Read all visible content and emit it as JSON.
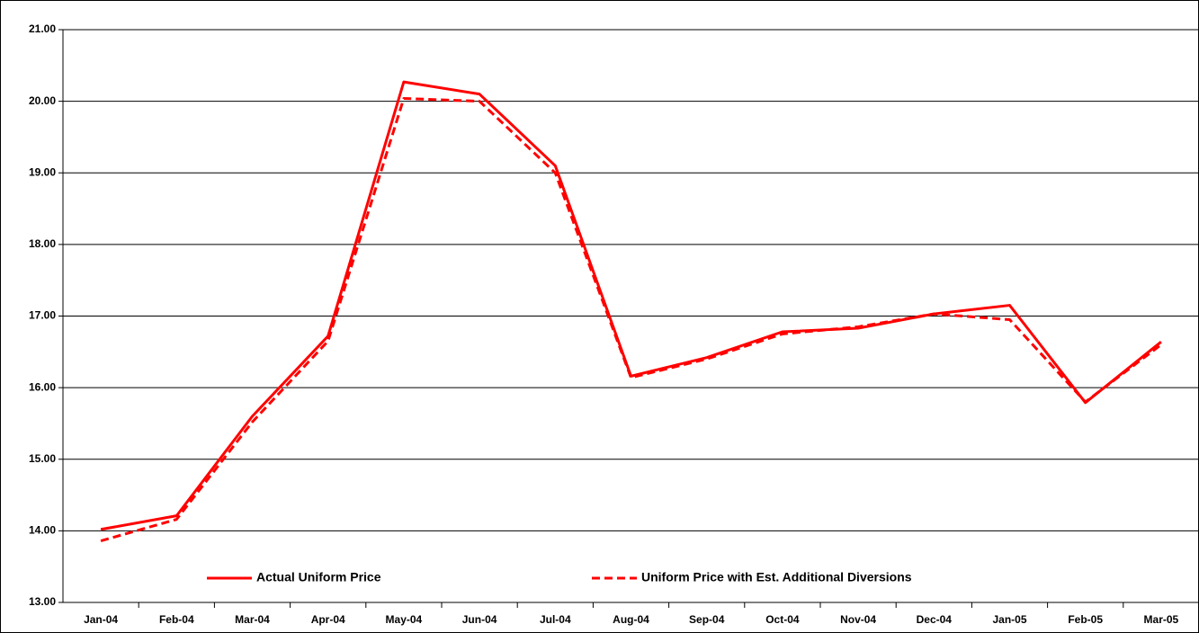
{
  "chart_data": {
    "type": "line",
    "categories": [
      "Jan-04",
      "Feb-04",
      "Mar-04",
      "Apr-04",
      "May-04",
      "Jun-04",
      "Jul-04",
      "Aug-04",
      "Sep-04",
      "Oct-04",
      "Nov-04",
      "Dec-04",
      "Jan-05",
      "Feb-05",
      "Mar-05"
    ],
    "series": [
      {
        "name": "Actual Uniform Price",
        "color": "#ff0000",
        "style": "solid",
        "values": [
          14.02,
          14.21,
          15.6,
          16.72,
          20.27,
          20.1,
          19.1,
          16.16,
          16.42,
          16.78,
          16.83,
          17.03,
          17.15,
          15.79,
          16.64
        ]
      },
      {
        "name": "Uniform Price with Est. Additional Diversions",
        "color": "#ff0000",
        "style": "dashed",
        "values": [
          13.86,
          14.16,
          15.52,
          16.65,
          20.04,
          20.0,
          19.0,
          16.14,
          16.4,
          16.75,
          16.85,
          17.03,
          16.95,
          15.8,
          16.6
        ]
      }
    ],
    "ylim": [
      13,
      21
    ],
    "yticks": [
      {
        "value": 13,
        "label": "13.00"
      },
      {
        "value": 14,
        "label": "14.00"
      },
      {
        "value": 15,
        "label": "15.00"
      },
      {
        "value": 16,
        "label": "16.00"
      },
      {
        "value": 17,
        "label": "17.00"
      },
      {
        "value": 18,
        "label": "18.00"
      },
      {
        "value": 19,
        "label": "19.00"
      },
      {
        "value": 20,
        "label": "20.00"
      },
      {
        "value": 21,
        "label": "21.00"
      }
    ],
    "grid": true,
    "legend": "bottom"
  }
}
